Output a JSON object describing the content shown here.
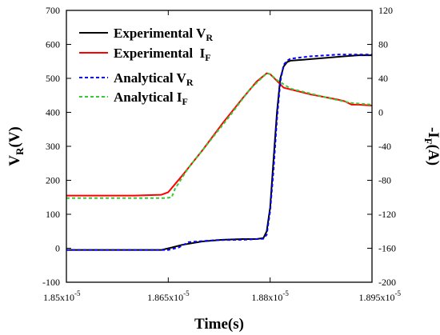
{
  "chart_data": {
    "type": "line",
    "title": "",
    "xlabel": "Time(s)",
    "ylabel_left": {
      "main": "V",
      "sub": "R",
      "tail": "(V)"
    },
    "ylabel_right": {
      "main": "-I",
      "sub": "F",
      "tail": "(A)"
    },
    "xlim": [
      1.85e-05,
      1.895e-05
    ],
    "ylim_left": [
      -100,
      700
    ],
    "ylim_right": [
      -200,
      120
    ],
    "x_ticks": [
      {
        "value": 1.85e-05,
        "mant": "1.85x10",
        "exp": "-5"
      },
      {
        "value": 1.865e-05,
        "mant": "1.865x10",
        "exp": "-5"
      },
      {
        "value": 1.88e-05,
        "mant": "1.88x10",
        "exp": "-5"
      },
      {
        "value": 1.895e-05,
        "mant": "1.895x10",
        "exp": "-5"
      }
    ],
    "y_ticks_left": [
      -100,
      0,
      100,
      200,
      300,
      400,
      500,
      600,
      700
    ],
    "y_ticks_right": [
      -200,
      -160,
      -120,
      -80,
      -40,
      0,
      40,
      80,
      120
    ],
    "legend_position": "top-left",
    "grid": false,
    "series": [
      {
        "name": {
          "main": "Experimental V",
          "sub": "R"
        },
        "axis": "left",
        "color": "#000000",
        "dash": "solid",
        "x": [
          1.85e-05,
          1.855e-05,
          1.86e-05,
          1.864e-05,
          1.8655e-05,
          1.867e-05,
          1.87e-05,
          1.873e-05,
          1.876e-05,
          1.878e-05,
          1.879e-05,
          1.8795e-05,
          1.88e-05,
          1.8805e-05,
          1.881e-05,
          1.8815e-05,
          1.882e-05,
          1.8825e-05,
          1.883e-05,
          1.885e-05,
          1.888e-05,
          1.891e-05,
          1.893e-05,
          1.895e-05
        ],
        "y": [
          -5,
          -5,
          -5,
          -5,
          2,
          10,
          20,
          25,
          27,
          27,
          30,
          50,
          120,
          260,
          400,
          500,
          535,
          548,
          552,
          555,
          560,
          565,
          568,
          568
        ]
      },
      {
        "name": {
          "main": "Experimental  I",
          "sub": "F"
        },
        "axis": "right",
        "color": "#ff0000",
        "dash": "solid",
        "x": [
          1.85e-05,
          1.855e-05,
          1.86e-05,
          1.864e-05,
          1.865e-05,
          1.867e-05,
          1.87e-05,
          1.873e-05,
          1.876e-05,
          1.878e-05,
          1.8795e-05,
          1.88e-05,
          1.881e-05,
          1.882e-05,
          1.884e-05,
          1.886e-05,
          1.888e-05,
          1.89e-05,
          1.891e-05,
          1.8915e-05,
          1.892e-05,
          1.893e-05,
          1.895e-05
        ],
        "y": [
          -98,
          -98,
          -98,
          -97,
          -94,
          -75,
          -45,
          -13,
          17,
          36,
          46,
          45,
          37,
          29,
          25,
          21,
          18,
          15,
          13,
          11,
          9,
          9,
          8
        ]
      },
      {
        "name": {
          "main": "Analytical V",
          "sub": "R"
        },
        "axis": "left",
        "color": "#0000ff",
        "dash": "dashed",
        "x": [
          1.85e-05,
          1.86e-05,
          1.865e-05,
          1.8665e-05,
          1.868e-05,
          1.872e-05,
          1.876e-05,
          1.879e-05,
          1.8795e-05,
          1.88e-05,
          1.8805e-05,
          1.881e-05,
          1.8815e-05,
          1.882e-05,
          1.8825e-05,
          1.883e-05,
          1.886e-05,
          1.89e-05,
          1.895e-05
        ],
        "y": [
          -5,
          -5,
          -5,
          2,
          18,
          24,
          25,
          28,
          40,
          110,
          230,
          380,
          490,
          540,
          552,
          558,
          565,
          570,
          570
        ]
      },
      {
        "name": {
          "main": "Analytical I",
          "sub": "F"
        },
        "axis": "right",
        "color": "#33cc33",
        "dash": "dashed",
        "x": [
          1.85e-05,
          1.855e-05,
          1.86e-05,
          1.8645e-05,
          1.8655e-05,
          1.866e-05,
          1.868e-05,
          1.871e-05,
          1.874e-05,
          1.877e-05,
          1.8795e-05,
          1.88e-05,
          1.881e-05,
          1.883e-05,
          1.886e-05,
          1.889e-05,
          1.892e-05,
          1.895e-05
        ],
        "y": [
          -101,
          -101,
          -101,
          -101,
          -100,
          -90,
          -65,
          -35,
          -5,
          27,
          46,
          45,
          38,
          28,
          22,
          16,
          11,
          9
        ]
      }
    ]
  }
}
